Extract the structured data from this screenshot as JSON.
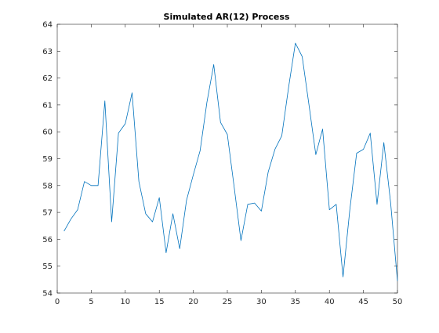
{
  "chart_data": {
    "type": "line",
    "title": "Simulated AR(12) Process",
    "xlabel": "",
    "ylabel": "",
    "xlim": [
      0,
      50
    ],
    "ylim": [
      54,
      64
    ],
    "xticks": [
      0,
      5,
      10,
      15,
      20,
      25,
      30,
      35,
      40,
      45,
      50
    ],
    "yticks": [
      54,
      55,
      56,
      57,
      58,
      59,
      60,
      61,
      62,
      63,
      64
    ],
    "grid": false,
    "legend": "none",
    "series": [
      {
        "color": "#0072BD",
        "x": [
          1,
          2,
          3,
          4,
          5,
          6,
          7,
          8,
          9,
          10,
          11,
          12,
          13,
          14,
          15,
          16,
          17,
          18,
          19,
          20,
          21,
          22,
          23,
          24,
          25,
          26,
          27,
          28,
          29,
          30,
          31,
          32,
          33,
          34,
          35,
          36,
          37,
          38,
          39,
          40,
          41,
          42,
          43,
          44,
          45,
          46,
          47,
          48,
          49,
          50
        ],
        "values": [
          56.3,
          56.75,
          57.1,
          58.15,
          58.0,
          58.0,
          61.15,
          56.65,
          59.95,
          60.3,
          61.45,
          58.15,
          56.95,
          56.65,
          57.55,
          55.5,
          56.95,
          55.65,
          57.45,
          58.4,
          59.3,
          61.1,
          62.5,
          60.35,
          59.9,
          57.95,
          55.95,
          57.3,
          57.35,
          57.05,
          58.5,
          59.35,
          59.85,
          61.65,
          63.3,
          62.8,
          61.0,
          59.15,
          60.1,
          57.1,
          57.3,
          54.6,
          57.1,
          59.2,
          59.35,
          59.95,
          57.3,
          59.6,
          57.35,
          54.45
        ]
      }
    ]
  }
}
